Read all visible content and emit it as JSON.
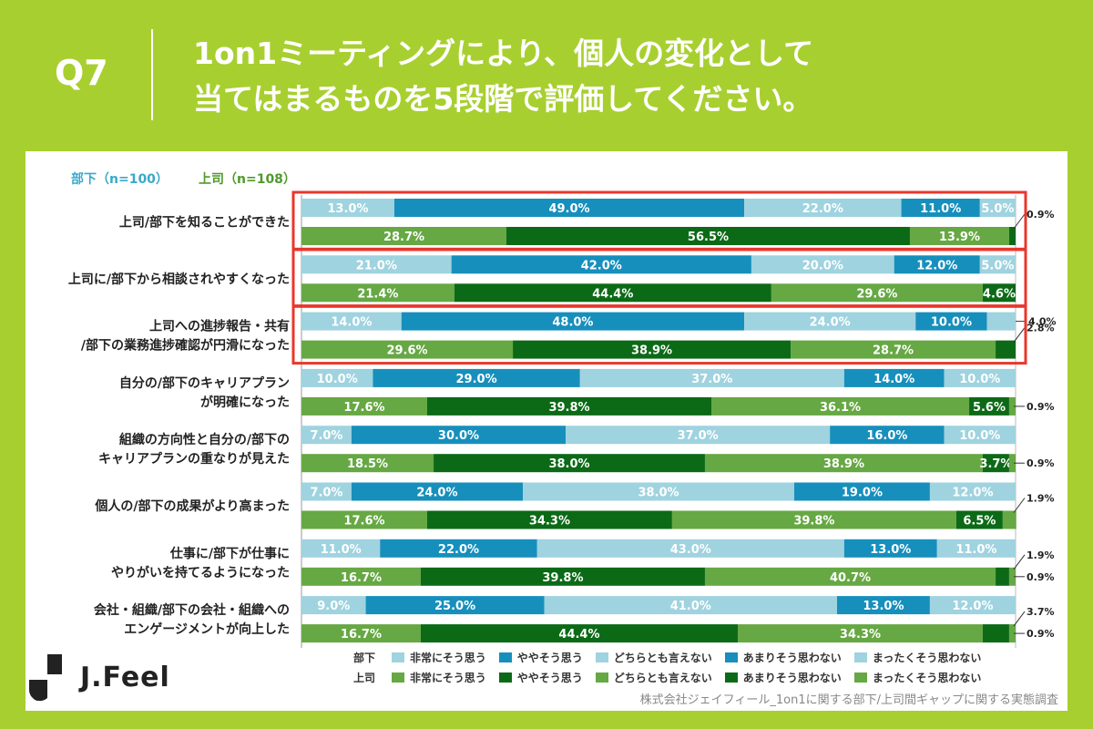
{
  "header": {
    "q": "Q7",
    "title_line1": "1on1ミーティングにより、個人の変化として",
    "title_line2": "当てはまるものを5段階で評価してください。"
  },
  "groups": {
    "subordinate": "部下（n=100）",
    "boss": "上司（n=108）"
  },
  "brand": "J.Feel",
  "source": "株式会社ジェイフィール_1on1に関する部下/上司間ギャップに関する実態調査",
  "colors": {
    "sub": [
      "#9fd3df",
      "#178fbc",
      "#9fd3df",
      "#178fbc",
      "#9fd3df"
    ],
    "boss": [
      "#66a843",
      "#0c6a17",
      "#66a843",
      "#0c6a17",
      "#66a843"
    ],
    "highlight": "#e8372c",
    "background": "#a8cf30"
  },
  "chart_data": {
    "type": "bar",
    "orientation": "horizontal-stacked-100",
    "series_names": [
      "非常にそう思う",
      "ややそう思う",
      "どちらとも言えない",
      "あまりそう思わない",
      "まったくそう思わない"
    ],
    "legend": {
      "sub_label": "部下",
      "boss_label": "上司",
      "items": [
        "非常にそう思う",
        "ややそう思う",
        "どちらとも言えない",
        "あまりそう思わない",
        "まったくそう思わない"
      ]
    },
    "highlighted_rows": [
      0,
      1,
      2
    ],
    "rows": [
      {
        "label": [
          "上司/部下を知ることができた"
        ],
        "sub": [
          13.0,
          49.0,
          22.0,
          11.0,
          5.0
        ],
        "sub_labels": [
          "13.0%",
          "49.0%",
          "22.0%",
          "11.0%",
          "5.0%"
        ],
        "boss": [
          28.7,
          56.5,
          13.9,
          0.9,
          0
        ],
        "boss_labels": [
          "28.7%",
          "56.5%",
          "13.9%",
          "",
          ""
        ],
        "callouts": [
          {
            "text": "0.9%",
            "bar": "boss"
          }
        ]
      },
      {
        "label": [
          "上司に/部下から相談されやすくなった"
        ],
        "sub": [
          21.0,
          42.0,
          20.0,
          12.0,
          5.0
        ],
        "sub_labels": [
          "21.0%",
          "42.0%",
          "20.0%",
          "12.0%",
          "5.0%"
        ],
        "boss": [
          21.4,
          44.4,
          29.6,
          4.6,
          0
        ],
        "boss_labels": [
          "21.4%",
          "44.4%",
          "29.6%",
          "4.6%",
          ""
        ],
        "callouts": []
      },
      {
        "label": [
          "上司への進捗報告・共有",
          "/部下の業務進捗確認が円滑になった"
        ],
        "sub": [
          14.0,
          48.0,
          24.0,
          10.0,
          4.0
        ],
        "sub_labels": [
          "14.0%",
          "48.0%",
          "24.0%",
          "10.0%",
          ""
        ],
        "boss": [
          29.6,
          38.9,
          28.7,
          2.8,
          0
        ],
        "boss_labels": [
          "29.6%",
          "38.9%",
          "28.7%",
          "",
          ""
        ],
        "callouts": [
          {
            "text": "4.0%",
            "bar": "sub"
          },
          {
            "text": "2.8%",
            "bar": "boss"
          }
        ]
      },
      {
        "label": [
          "自分の/部下のキャリアプラン",
          "が明確になった"
        ],
        "sub": [
          10.0,
          29.0,
          37.0,
          14.0,
          10.0
        ],
        "sub_labels": [
          "10.0%",
          "29.0%",
          "37.0%",
          "14.0%",
          "10.0%"
        ],
        "boss": [
          17.6,
          39.8,
          36.1,
          5.6,
          0.9
        ],
        "boss_labels": [
          "17.6%",
          "39.8%",
          "36.1%",
          "5.6%",
          ""
        ],
        "callouts": [
          {
            "text": "0.9%",
            "bar": "boss"
          }
        ]
      },
      {
        "label": [
          "組織の方向性と自分の/部下の",
          "キャリアプランの重なりが見えた"
        ],
        "sub": [
          7.0,
          30.0,
          37.0,
          16.0,
          10.0
        ],
        "sub_labels": [
          "7.0%",
          "30.0%",
          "37.0%",
          "16.0%",
          "10.0%"
        ],
        "boss": [
          18.5,
          38.0,
          38.9,
          3.7,
          0.9
        ],
        "boss_labels": [
          "18.5%",
          "38.0%",
          "38.9%",
          "3.7%",
          ""
        ],
        "callouts": [
          {
            "text": "0.9%",
            "bar": "boss"
          }
        ]
      },
      {
        "label": [
          "個人の/部下の成果がより高まった"
        ],
        "sub": [
          7.0,
          24.0,
          38.0,
          19.0,
          12.0
        ],
        "sub_labels": [
          "7.0%",
          "24.0%",
          "38.0%",
          "19.0%",
          "12.0%"
        ],
        "boss": [
          17.6,
          34.3,
          39.8,
          6.5,
          1.9
        ],
        "boss_labels": [
          "17.6%",
          "34.3%",
          "39.8%",
          "6.5%",
          ""
        ],
        "callouts": [
          {
            "text": "1.9%",
            "bar": "boss"
          }
        ]
      },
      {
        "label": [
          "仕事に/部下が仕事に",
          "やりがいを持てるようになった"
        ],
        "sub": [
          11.0,
          22.0,
          43.0,
          13.0,
          11.0
        ],
        "sub_labels": [
          "11.0%",
          "22.0%",
          "43.0%",
          "13.0%",
          "11.0%"
        ],
        "boss": [
          16.7,
          39.8,
          40.7,
          1.9,
          0.9
        ],
        "boss_labels": [
          "16.7%",
          "39.8%",
          "40.7%",
          "",
          ""
        ],
        "callouts": [
          {
            "text": "1.9%",
            "bar": "boss"
          },
          {
            "text": "0.9%",
            "bar": "boss"
          }
        ]
      },
      {
        "label": [
          "会社・組織/部下の会社・組織への",
          "エンゲージメントが向上した"
        ],
        "sub": [
          9.0,
          25.0,
          41.0,
          13.0,
          12.0
        ],
        "sub_labels": [
          "9.0%",
          "25.0%",
          "41.0%",
          "13.0%",
          "12.0%"
        ],
        "boss": [
          16.7,
          44.4,
          34.3,
          3.7,
          0.9
        ],
        "boss_labels": [
          "16.7%",
          "44.4%",
          "34.3%",
          "",
          ""
        ],
        "callouts": [
          {
            "text": "3.7%",
            "bar": "boss"
          },
          {
            "text": "0.9%",
            "bar": "boss"
          }
        ]
      }
    ]
  }
}
